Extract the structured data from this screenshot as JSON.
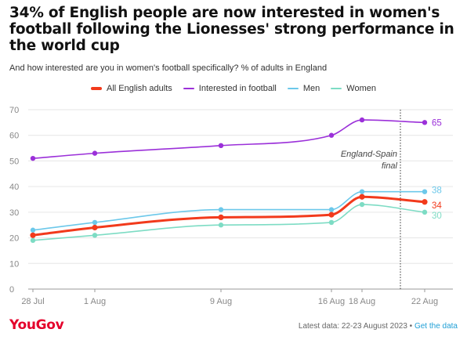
{
  "title": "34% of English people are now interested in women's football following the Lionesses' strong performance in the world cup",
  "subtitle": "And how interested are you in women's football specifically? % of adults in England",
  "footer": {
    "logo": "YouGov",
    "note": "Latest data: 22-23 August 2023 • ",
    "link": "Get the data"
  },
  "colors": {
    "all": "#f23a1c",
    "interested": "#9b30d9",
    "men": "#6cc8ea",
    "women": "#7ddcc4",
    "grid": "#e6e6e6",
    "axis_text": "#888888"
  },
  "chart_data": {
    "type": "line",
    "x": [
      "28 Jul",
      "1 Aug",
      "9 Aug",
      "16 Aug",
      "18 Aug",
      "22 Aug"
    ],
    "x_tick_labels": [
      "28 Jul",
      "1 Aug",
      "9 Aug",
      "16 Aug",
      "18 Aug",
      "22 Aug"
    ],
    "y_ticks": [
      "0",
      "10",
      "20",
      "30",
      "40",
      "50",
      "60",
      "70"
    ],
    "ylim": [
      0,
      70
    ],
    "grid": true,
    "legend_position": "top-center",
    "series": [
      {
        "name": "All English adults",
        "color": "#f23a1c",
        "values": [
          21,
          24,
          28,
          29,
          36,
          34
        ],
        "end_label": "34"
      },
      {
        "name": "Interested in football",
        "color": "#9b30d9",
        "values": [
          51,
          53,
          56,
          60,
          66,
          65
        ],
        "end_label": "65"
      },
      {
        "name": "Men",
        "color": "#6cc8ea",
        "values": [
          23,
          26,
          31,
          31,
          38,
          38
        ],
        "end_label": "38"
      },
      {
        "name": "Women",
        "color": "#7ddcc4",
        "values": [
          19,
          21,
          25,
          26,
          33,
          30
        ],
        "end_label": "30"
      }
    ],
    "annotation": {
      "text_line1": "England-Spain",
      "text_line2": "final",
      "date": "20 Aug"
    }
  }
}
